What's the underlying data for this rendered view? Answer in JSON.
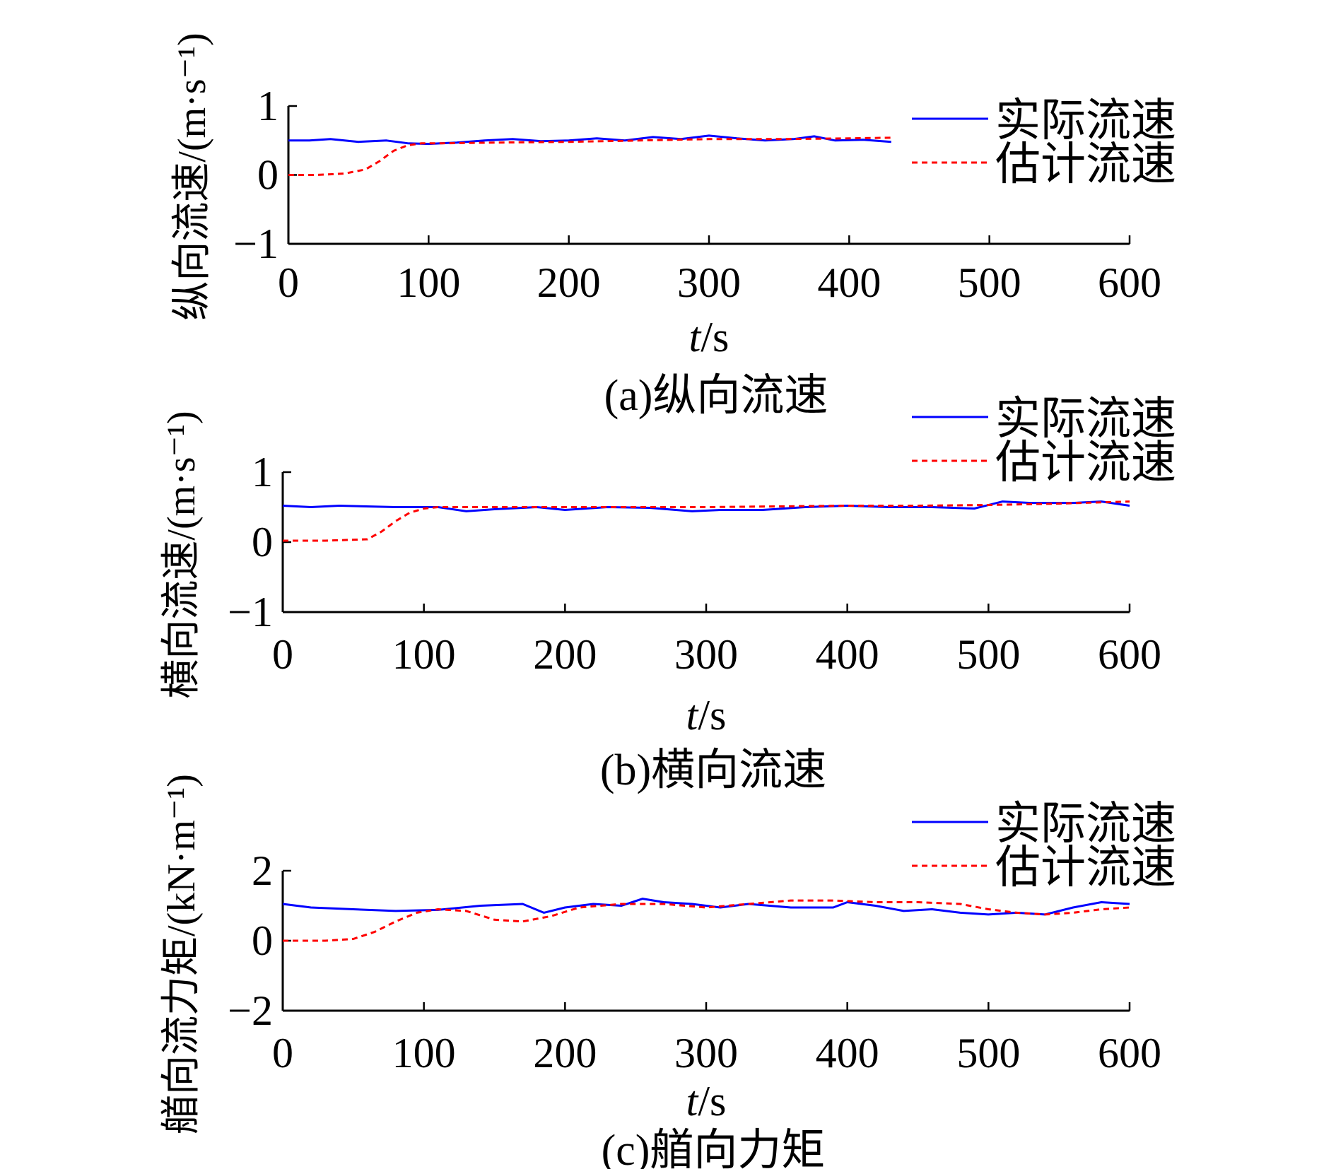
{
  "chart_data": [
    {
      "type": "line",
      "panel": "a",
      "caption": "(a)纵向流速",
      "ylabel": "纵向流速/(m·s⁻¹)",
      "xlabel_italic": "t",
      "xlabel_unit": "/s",
      "xlim": [
        0,
        600
      ],
      "ylim": [
        -1,
        1
      ],
      "xticks": [
        0,
        100,
        200,
        300,
        400,
        500,
        600
      ],
      "yticks": [
        -1,
        0,
        1
      ],
      "ytick_labels": [
        "−1",
        "0",
        "1"
      ],
      "legend_position": "top-right",
      "series": [
        {
          "name": "实际流速",
          "color": "#0000ff",
          "style": "solid",
          "x": [
            0,
            15,
            30,
            50,
            70,
            85,
            100,
            120,
            140,
            160,
            180,
            200,
            220,
            240,
            260,
            280,
            300,
            320,
            340,
            360,
            375,
            390,
            410,
            430
          ],
          "y": [
            0.5,
            0.5,
            0.52,
            0.48,
            0.5,
            0.46,
            0.45,
            0.47,
            0.5,
            0.52,
            0.49,
            0.5,
            0.53,
            0.5,
            0.55,
            0.52,
            0.57,
            0.53,
            0.5,
            0.52,
            0.56,
            0.5,
            0.51,
            0.48
          ]
        },
        {
          "name": "估计流速",
          "color": "#ff0000",
          "style": "dashed",
          "x": [
            0,
            20,
            40,
            55,
            65,
            75,
            85,
            95,
            110,
            150,
            200,
            250,
            300,
            350,
            400,
            430
          ],
          "y": [
            0,
            0,
            0.02,
            0.08,
            0.2,
            0.35,
            0.43,
            0.46,
            0.46,
            0.47,
            0.48,
            0.5,
            0.52,
            0.52,
            0.53,
            0.54
          ]
        }
      ]
    },
    {
      "type": "line",
      "panel": "b",
      "caption": "(b)横向流速",
      "ylabel": "横向流速/(m·s⁻¹)",
      "xlabel_italic": "t",
      "xlabel_unit": "/s",
      "xlim": [
        0,
        600
      ],
      "ylim": [
        -1,
        1
      ],
      "xticks": [
        0,
        100,
        200,
        300,
        400,
        500,
        600
      ],
      "yticks": [
        -1,
        0,
        1
      ],
      "ytick_labels": [
        "−1",
        "0",
        "1"
      ],
      "legend_position": "top-right",
      "series": [
        {
          "name": "实际流速",
          "color": "#0000ff",
          "style": "solid",
          "x": [
            0,
            20,
            40,
            80,
            110,
            130,
            150,
            180,
            200,
            230,
            260,
            290,
            310,
            340,
            370,
            400,
            430,
            460,
            490,
            510,
            530,
            560,
            580,
            600
          ],
          "y": [
            0.52,
            0.5,
            0.52,
            0.5,
            0.5,
            0.44,
            0.47,
            0.5,
            0.46,
            0.5,
            0.49,
            0.44,
            0.46,
            0.46,
            0.5,
            0.52,
            0.5,
            0.5,
            0.48,
            0.58,
            0.56,
            0.56,
            0.58,
            0.52
          ]
        },
        {
          "name": "估计流速",
          "color": "#ff0000",
          "style": "dashed",
          "x": [
            0,
            30,
            60,
            70,
            80,
            90,
            100,
            110,
            150,
            200,
            250,
            300,
            350,
            400,
            450,
            500,
            550,
            600
          ],
          "y": [
            0.02,
            0.02,
            0.04,
            0.15,
            0.3,
            0.42,
            0.48,
            0.5,
            0.5,
            0.5,
            0.5,
            0.5,
            0.51,
            0.52,
            0.52,
            0.53,
            0.55,
            0.58
          ]
        }
      ]
    },
    {
      "type": "line",
      "panel": "c",
      "caption": "(c)艏向力矩",
      "ylabel": "艏向流力矩/(kN·m⁻¹)",
      "xlabel_italic": "t",
      "xlabel_unit": "/s",
      "xlim": [
        0,
        600
      ],
      "ylim": [
        -2,
        2
      ],
      "xticks": [
        0,
        100,
        200,
        300,
        400,
        500,
        600
      ],
      "yticks": [
        -2,
        0,
        2
      ],
      "ytick_labels": [
        "−2",
        "0",
        "2"
      ],
      "legend_position": "top-right",
      "series": [
        {
          "name": "实际流速",
          "color": "#0000ff",
          "style": "solid",
          "x": [
            0,
            20,
            50,
            80,
            110,
            140,
            170,
            185,
            200,
            220,
            240,
            255,
            270,
            290,
            310,
            330,
            360,
            390,
            400,
            420,
            440,
            460,
            480,
            500,
            520,
            540,
            560,
            580,
            600
          ],
          "y": [
            1.05,
            0.95,
            0.9,
            0.85,
            0.88,
            1.0,
            1.05,
            0.8,
            0.95,
            1.05,
            1.0,
            1.2,
            1.1,
            1.05,
            0.95,
            1.05,
            0.95,
            0.95,
            1.1,
            1.0,
            0.85,
            0.9,
            0.8,
            0.75,
            0.8,
            0.75,
            0.95,
            1.1,
            1.05
          ]
        },
        {
          "name": "估计流速",
          "color": "#ff0000",
          "style": "dashed",
          "x": [
            0,
            30,
            50,
            65,
            80,
            95,
            110,
            130,
            150,
            170,
            190,
            210,
            240,
            270,
            300,
            330,
            360,
            390,
            420,
            450,
            480,
            500,
            520,
            540,
            560,
            580,
            600
          ],
          "y": [
            0,
            0,
            0.05,
            0.25,
            0.55,
            0.8,
            0.9,
            0.85,
            0.6,
            0.55,
            0.7,
            0.95,
            1.05,
            1.05,
            0.95,
            1.05,
            1.15,
            1.15,
            1.1,
            1.1,
            1.05,
            0.9,
            0.8,
            0.75,
            0.8,
            0.9,
            0.95
          ]
        }
      ]
    }
  ]
}
